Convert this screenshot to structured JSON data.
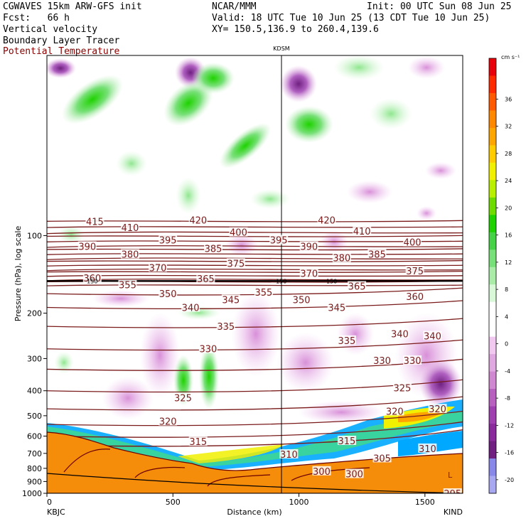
{
  "header": {
    "line1_left": "CGWAVES 15km ARW-GFS init",
    "line1_mid": "NCAR/MMM",
    "line1_right": "Init: 00 UTC Sun 08 Jun 25",
    "line2_left": "Fcst:   66 h",
    "line2_right": "Valid: 18 UTC Tue 10 Jun 25 (13 CDT Tue 10 Jun 25)",
    "line3_left": "Vertical velocity",
    "line3_right": "XY= 150.5,136.9 to 260.4,139.6",
    "line4_left": "Boundary Layer Tracer",
    "line5_left": "Potential Temperature"
  },
  "colors": {
    "theta": "#7a1a1a",
    "terrain": "#f58c0a",
    "terrain_edge": "#6b0000"
  },
  "chart_data": {
    "type": "heatmap",
    "xlabel": "Distance (km)",
    "ylabel": "Pressure (hPa), log scale",
    "xlim": [
      0,
      1650
    ],
    "ylim": [
      1000,
      20
    ],
    "y_scale": "log",
    "x_ticks": [
      0,
      500,
      1000,
      1500
    ],
    "y_ticks": [
      100,
      200,
      300,
      400,
      500,
      600,
      700,
      800,
      900,
      1000
    ],
    "x_tick_labels": [
      "0",
      "500",
      "1000",
      "1500"
    ],
    "y_tick_labels": [
      "100",
      "200",
      "300",
      "400",
      "500",
      "600",
      "700",
      "800",
      "900",
      "1000"
    ],
    "left_endpoint": "KBJC",
    "right_endpoint": "KIND",
    "marker_label": "KDSM",
    "marker_x": 930,
    "colorbar": {
      "unit": "cm s⁻¹",
      "ticks": [
        36,
        32,
        28,
        24,
        20,
        16,
        12,
        8,
        4,
        0,
        -4,
        -8,
        -12,
        -16,
        -20
      ],
      "tick_labels": [
        "36",
        "32",
        "28",
        "24",
        "20",
        "16",
        "12",
        "8",
        "4",
        "0",
        "-4",
        "-8",
        "-12",
        "-16",
        "-20"
      ],
      "colors": [
        "#e8000b",
        "#ff2a00",
        "#ff5a00",
        "#ff8800",
        "#ffa500",
        "#ffcc00",
        "#f0f000",
        "#b8f000",
        "#6fdc00",
        "#1ed200",
        "#46d246",
        "#78e078",
        "#a8eca8",
        "#d8f8d8",
        "#ffffff",
        "#ffffff",
        "#f0c8f0",
        "#e0a8e0",
        "#d088d0",
        "#b860c0",
        "#a040b0",
        "#8a2a9c",
        "#702080",
        "#8888e8",
        "#a8a8f0"
      ]
    },
    "theta_labels": [
      {
        "text": "415",
        "x": 190,
        "p": 88
      },
      {
        "text": "410",
        "x": 330,
        "p": 93
      },
      {
        "text": "420",
        "x": 600,
        "p": 87
      },
      {
        "text": "400",
        "x": 760,
        "p": 97
      },
      {
        "text": "395",
        "x": 480,
        "p": 104
      },
      {
        "text": "390",
        "x": 160,
        "p": 110
      },
      {
        "text": "385",
        "x": 660,
        "p": 112
      },
      {
        "text": "380",
        "x": 330,
        "p": 118
      },
      {
        "text": "375",
        "x": 750,
        "p": 128
      },
      {
        "text": "370",
        "x": 440,
        "p": 133
      },
      {
        "text": "365",
        "x": 630,
        "p": 147
      },
      {
        "text": "360",
        "x": 180,
        "p": 146
      },
      {
        "text": "355",
        "x": 320,
        "p": 155
      },
      {
        "text": "350",
        "x": 480,
        "p": 168
      },
      {
        "text": "345",
        "x": 730,
        "p": 177
      },
      {
        "text": "340",
        "x": 570,
        "p": 190
      },
      {
        "text": "335",
        "x": 710,
        "p": 225
      },
      {
        "text": "330",
        "x": 640,
        "p": 275
      },
      {
        "text": "325",
        "x": 540,
        "p": 425
      },
      {
        "text": "320",
        "x": 480,
        "p": 525
      },
      {
        "text": "315",
        "x": 600,
        "p": 630
      },
      {
        "text": "420",
        "x": 1110,
        "p": 87
      },
      {
        "text": "410",
        "x": 1250,
        "p": 96
      },
      {
        "text": "400",
        "x": 1450,
        "p": 106
      },
      {
        "text": "395",
        "x": 920,
        "p": 104
      },
      {
        "text": "390",
        "x": 1040,
        "p": 110
      },
      {
        "text": "385",
        "x": 1310,
        "p": 118
      },
      {
        "text": "380",
        "x": 1170,
        "p": 122
      },
      {
        "text": "375",
        "x": 1460,
        "p": 137
      },
      {
        "text": "370",
        "x": 1040,
        "p": 140
      },
      {
        "text": "365",
        "x": 1230,
        "p": 157
      },
      {
        "text": "360",
        "x": 1460,
        "p": 172
      },
      {
        "text": "355",
        "x": 860,
        "p": 166
      },
      {
        "text": "350",
        "x": 1010,
        "p": 177
      },
      {
        "text": "345",
        "x": 1150,
        "p": 190
      },
      {
        "text": "340",
        "x": 1400,
        "p": 240
      },
      {
        "text": "340",
        "x": 1530,
        "p": 245
      },
      {
        "text": "335",
        "x": 1190,
        "p": 255
      },
      {
        "text": "330",
        "x": 1330,
        "p": 305
      },
      {
        "text": "330",
        "x": 1450,
        "p": 305
      },
      {
        "text": "325",
        "x": 1410,
        "p": 390
      },
      {
        "text": "320",
        "x": 1380,
        "p": 480
      },
      {
        "text": "320",
        "x": 1550,
        "p": 470
      },
      {
        "text": "315",
        "x": 1190,
        "p": 625
      },
      {
        "text": "310",
        "x": 960,
        "p": 705
      },
      {
        "text": "310",
        "x": 1510,
        "p": 670
      },
      {
        "text": "305",
        "x": 1330,
        "p": 730
      },
      {
        "text": "300",
        "x": 1090,
        "p": 820
      },
      {
        "text": "300",
        "x": 1220,
        "p": 840
      },
      {
        "text": "295",
        "x": 1610,
        "p": 1000
      }
    ],
    "small_labels": [
      {
        "text": "150",
        "x": 180,
        "p": 150
      },
      {
        "text": "150",
        "x": 930,
        "p": 150
      },
      {
        "text": "150",
        "x": 1130,
        "p": 150
      }
    ],
    "corner_label": "L"
  }
}
